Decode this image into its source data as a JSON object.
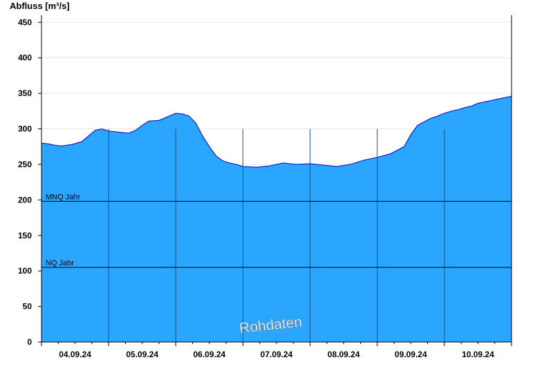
{
  "chart_data": {
    "type": "area",
    "ylabel": "Abfluss [m³/s]",
    "xlabel": "",
    "ylim": [
      0,
      460
    ],
    "yticks": [
      0,
      50,
      100,
      150,
      200,
      250,
      300,
      350,
      400,
      450
    ],
    "xlim": [
      0,
      7
    ],
    "day_labels": [
      "04.09.24",
      "05.09.24",
      "06.09.24",
      "07.09.24",
      "08.09.24",
      "09.09.24",
      "10.09.24"
    ],
    "reference_lines": [
      {
        "label": "MNQ Jahr",
        "value": 198
      },
      {
        "label": "NQ Jahr",
        "value": 105
      }
    ],
    "watermark": "Rohdaten",
    "colors": {
      "fill": "#2aa6ff",
      "line": "#0000cc",
      "ref_line": "#000000",
      "day_line": "#1a4f8a",
      "grid": "#e6e6e6"
    },
    "series": [
      {
        "x": [
          0.0,
          0.1,
          0.2,
          0.3,
          0.45,
          0.6,
          0.7,
          0.8,
          0.9,
          1.0,
          1.1,
          1.2,
          1.3,
          1.4,
          1.5,
          1.6,
          1.75,
          1.9,
          2.0,
          2.1,
          2.2,
          2.3,
          2.4,
          2.5,
          2.6,
          2.7,
          2.8,
          2.9,
          3.0,
          3.2,
          3.4,
          3.6,
          3.8,
          4.0,
          4.2,
          4.4,
          4.6,
          4.8,
          5.0,
          5.2,
          5.4,
          5.5,
          5.6,
          5.7,
          5.8,
          5.9,
          6.0,
          6.1,
          6.2,
          6.3,
          6.4,
          6.5,
          6.6,
          6.7,
          6.8,
          6.9,
          7.0
        ],
        "y": [
          280,
          279,
          277,
          276,
          278,
          282,
          290,
          298,
          300,
          297,
          296,
          295,
          294,
          298,
          305,
          311,
          312,
          318,
          322,
          321,
          318,
          308,
          290,
          275,
          262,
          255,
          252,
          250,
          247,
          246,
          248,
          252,
          250,
          251,
          249,
          247,
          250,
          256,
          260,
          265,
          275,
          292,
          305,
          310,
          315,
          318,
          322,
          325,
          327,
          330,
          332,
          336,
          338,
          340,
          342,
          344,
          346
        ]
      }
    ]
  }
}
